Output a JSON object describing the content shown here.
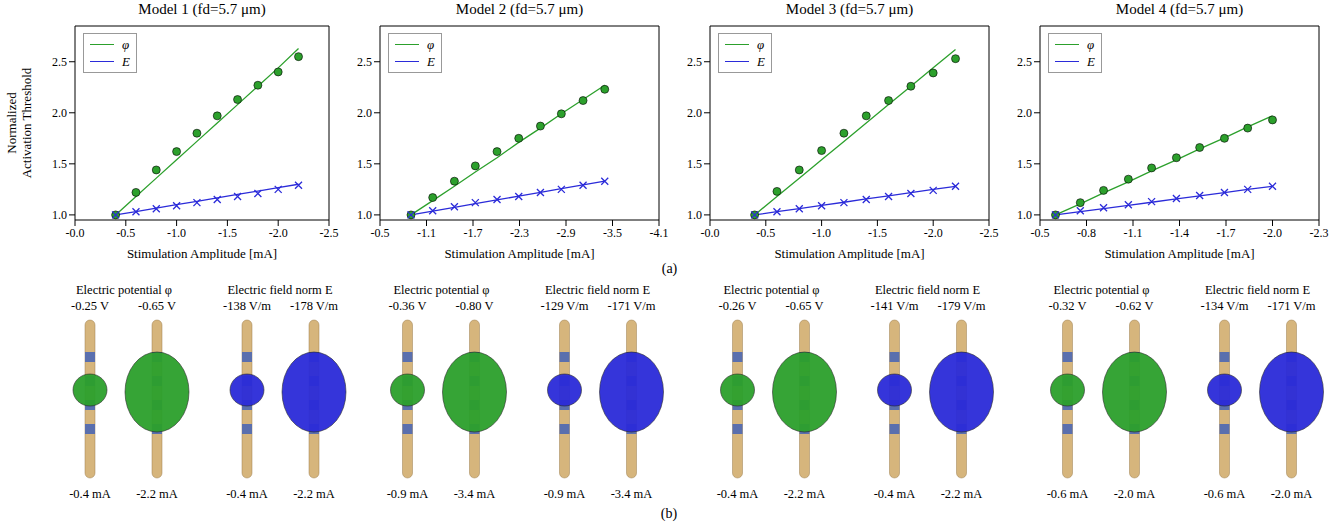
{
  "chart_data": [
    {
      "type": "line",
      "title": "Model 1 (fd=5.7 μm)",
      "x_label": "Stimulation Amplitude [mA]",
      "y_label": "Normalized Activation Threshold",
      "legend": "upper left",
      "x": [
        -0.4,
        -0.6,
        -0.8,
        -1.0,
        -1.2,
        -1.4,
        -1.6,
        -1.8,
        -2.0,
        -2.2
      ],
      "xlim": [
        0,
        -2.5
      ],
      "xticks": [
        {
          "value": 0,
          "label": "-0.0"
        },
        -0.5,
        {
          "value": -1,
          "label": "-1.0"
        },
        -1.5,
        {
          "value": -2,
          "label": "-2.0"
        },
        -2.5
      ],
      "ylim": [
        0.95,
        2.85
      ],
      "yticks": [
        {
          "value": 1,
          "label": "1.0"
        },
        1.5,
        {
          "value": 2,
          "label": "2.0"
        },
        2.5
      ],
      "series": [
        {
          "name": "φ",
          "color": "#2ca02c",
          "marker": "circle",
          "values": [
            1.0,
            1.18,
            1.36,
            1.54,
            1.72,
            1.9,
            2.08,
            2.26,
            2.44,
            2.63
          ],
          "points": [
            1.0,
            1.22,
            1.44,
            1.62,
            1.8,
            1.97,
            2.13,
            2.27,
            2.4,
            2.55
          ]
        },
        {
          "name": "E",
          "color": "#2b2bd9",
          "marker": "x",
          "values": [
            1.0,
            1.033,
            1.067,
            1.1,
            1.133,
            1.167,
            1.2,
            1.233,
            1.267,
            1.3
          ],
          "points": [
            1.0,
            1.03,
            1.06,
            1.09,
            1.12,
            1.15,
            1.18,
            1.21,
            1.25,
            1.29
          ]
        }
      ]
    },
    {
      "type": "line",
      "title": "Model 2 (fd=5.7 μm)",
      "x_label": "Stimulation Amplitude [mA]",
      "legend": "upper left",
      "x": [
        -0.9,
        -1.18,
        -1.46,
        -1.73,
        -2.01,
        -2.29,
        -2.57,
        -2.84,
        -3.12,
        -3.4
      ],
      "xlim": [
        -0.5,
        -4.1
      ],
      "xticks": [
        -0.5,
        -1.1,
        -1.7,
        -2.3,
        -2.9,
        -3.5,
        -4.1
      ],
      "ylim": [
        0.95,
        2.85
      ],
      "yticks": [
        {
          "value": 1,
          "label": "1.0"
        },
        1.5,
        {
          "value": 2,
          "label": "2.0"
        },
        2.5
      ],
      "series": [
        {
          "name": "φ",
          "color": "#2ca02c",
          "marker": "circle",
          "values": [
            1.0,
            1.14,
            1.28,
            1.42,
            1.56,
            1.71,
            1.85,
            1.99,
            2.13,
            2.27
          ],
          "points": [
            1.0,
            1.17,
            1.33,
            1.48,
            1.62,
            1.75,
            1.87,
            1.99,
            2.12,
            2.23
          ]
        },
        {
          "name": "E",
          "color": "#2b2bd9",
          "marker": "x",
          "values": [
            1.0,
            1.037,
            1.073,
            1.11,
            1.147,
            1.183,
            1.22,
            1.257,
            1.293,
            1.33
          ],
          "points": [
            1.0,
            1.04,
            1.08,
            1.12,
            1.15,
            1.18,
            1.22,
            1.25,
            1.29,
            1.33
          ]
        }
      ]
    },
    {
      "type": "line",
      "title": "Model 3 (fd=5.7 μm)",
      "x_label": "Stimulation Amplitude [mA]",
      "legend": "upper left",
      "x": [
        -0.4,
        -0.6,
        -0.8,
        -1.0,
        -1.2,
        -1.4,
        -1.6,
        -1.8,
        -2.0,
        -2.2
      ],
      "xlim": [
        0,
        -2.5
      ],
      "xticks": [
        {
          "value": 0,
          "label": "-0.0"
        },
        -0.5,
        {
          "value": -1,
          "label": "-1.0"
        },
        -1.5,
        {
          "value": -2,
          "label": "-2.0"
        },
        -2.5
      ],
      "ylim": [
        0.95,
        2.85
      ],
      "yticks": [
        {
          "value": 1,
          "label": "1.0"
        },
        1.5,
        {
          "value": 2,
          "label": "2.0"
        },
        2.5
      ],
      "series": [
        {
          "name": "φ",
          "color": "#2ca02c",
          "marker": "circle",
          "values": [
            1.0,
            1.18,
            1.36,
            1.54,
            1.72,
            1.9,
            2.08,
            2.26,
            2.44,
            2.62
          ],
          "points": [
            1.0,
            1.23,
            1.44,
            1.63,
            1.8,
            1.97,
            2.12,
            2.26,
            2.39,
            2.53
          ]
        },
        {
          "name": "E",
          "color": "#2b2bd9",
          "marker": "x",
          "values": [
            1.0,
            1.031,
            1.062,
            1.093,
            1.124,
            1.156,
            1.187,
            1.218,
            1.249,
            1.28
          ],
          "points": [
            1.0,
            1.03,
            1.06,
            1.09,
            1.12,
            1.15,
            1.18,
            1.21,
            1.24,
            1.28
          ]
        }
      ]
    },
    {
      "type": "line",
      "title": "Model 4 (fd=5.7 μm)",
      "x_label": "Stimulation Amplitude [mA]",
      "legend": "upper left",
      "x": [
        -0.6,
        -0.76,
        -0.91,
        -1.07,
        -1.22,
        -1.38,
        -1.53,
        -1.69,
        -1.84,
        -2.0
      ],
      "xlim": [
        -0.5,
        -2.3
      ],
      "xticks": [
        -0.5,
        -0.8,
        -1.1,
        -1.4,
        -1.7,
        {
          "value": -2,
          "label": "-2.0"
        },
        -2.3
      ],
      "ylim": [
        0.95,
        2.85
      ],
      "yticks": [
        {
          "value": 1,
          "label": "1.0"
        },
        1.5,
        {
          "value": 2,
          "label": "2.0"
        },
        2.5
      ],
      "series": [
        {
          "name": "φ",
          "color": "#2ca02c",
          "marker": "circle",
          "values": [
            1.0,
            1.108,
            1.216,
            1.323,
            1.431,
            1.539,
            1.647,
            1.754,
            1.862,
            1.97
          ],
          "points": [
            1.0,
            1.12,
            1.24,
            1.35,
            1.46,
            1.56,
            1.66,
            1.75,
            1.85,
            1.93
          ]
        },
        {
          "name": "E",
          "color": "#2b2bd9",
          "marker": "x",
          "values": [
            1.0,
            1.031,
            1.062,
            1.093,
            1.124,
            1.156,
            1.187,
            1.218,
            1.249,
            1.28
          ],
          "points": [
            1.0,
            1.04,
            1.07,
            1.1,
            1.13,
            1.16,
            1.19,
            1.22,
            1.25,
            1.28
          ]
        }
      ]
    }
  ],
  "caption_a": "(a)",
  "caption_b": "(b)",
  "renderings": [
    {
      "headers": [
        "Electric potential φ",
        "Electric field norm E"
      ],
      "values": [
        "-0.25 V",
        "-0.65 V",
        "-138 V/m",
        "-178 V/m"
      ],
      "amplitudes": [
        "-0.4 mA",
        "-2.2 mA",
        "-0.4 mA",
        "-2.2 mA"
      ]
    },
    {
      "headers": [
        "Electric potential φ",
        "Electric field norm E"
      ],
      "values": [
        "-0.36 V",
        "-0.80 V",
        "-129 V/m",
        "-171 V/m"
      ],
      "amplitudes": [
        "-0.9 mA",
        "-3.4 mA",
        "-0.9 mA",
        "-3.4 mA"
      ]
    },
    {
      "headers": [
        "Electric potential φ",
        "Electric field norm E"
      ],
      "values": [
        "-0.26 V",
        "-0.65 V",
        "-141 V/m",
        "-179 V/m"
      ],
      "amplitudes": [
        "-0.4 mA",
        "-2.2 mA",
        "-0.4 mA",
        "-2.2 mA"
      ]
    },
    {
      "headers": [
        "Electric potential φ",
        "Electric field norm E"
      ],
      "values": [
        "-0.32 V",
        "-0.62 V",
        "-134 V/m",
        "-171 V/m"
      ],
      "amplitudes": [
        "-0.6 mA",
        "-2.0 mA",
        "-0.6 mA",
        "-2.0 mA"
      ]
    }
  ]
}
